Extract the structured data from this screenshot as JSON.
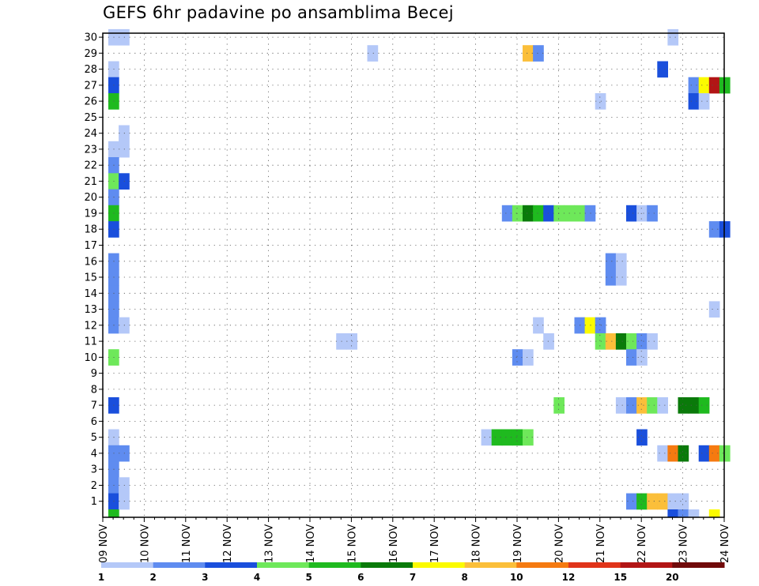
{
  "title": "GEFS 6hr padavine po ansamblima Becej",
  "chart_data": {
    "type": "heatmap",
    "title": "GEFS 6hr padavine po ansamblima Becej",
    "x_start": "2024-11-09",
    "x_tick_labels": [
      "09 NOV",
      "10 NOV",
      "11 NOV",
      "12 NOV",
      "13 NOV",
      "14 NOV",
      "15 NOV",
      "16 NOV",
      "17 NOV",
      "18 NOV",
      "19 NOV",
      "20 NOV",
      "21 NOV",
      "22 NOV",
      "23 NOV",
      "24 NOV"
    ],
    "y_tick_labels": [
      "1",
      "2",
      "3",
      "4",
      "5",
      "6",
      "7",
      "8",
      "9",
      "10",
      "11",
      "12",
      "13",
      "14",
      "15",
      "16",
      "17",
      "18",
      "19",
      "20",
      "21",
      "22",
      "23",
      "24",
      "25",
      "26",
      "27",
      "28",
      "29",
      "30"
    ],
    "y_range": [
      0,
      30
    ],
    "time_step_hours": 6,
    "grid": true,
    "legend_position": "bottom",
    "color_levels": [
      {
        "from": 1,
        "to": 2,
        "color": "#b4c8f8"
      },
      {
        "from": 2,
        "to": 3,
        "color": "#5f8cf0"
      },
      {
        "from": 3,
        "to": 4,
        "color": "#1a4fdc"
      },
      {
        "from": 4,
        "to": 5,
        "color": "#6ee85a"
      },
      {
        "from": 5,
        "to": 6,
        "color": "#1fba1f"
      },
      {
        "from": 6,
        "to": 7,
        "color": "#0a7a0a"
      },
      {
        "from": 7,
        "to": 8,
        "color": "#fbfb00"
      },
      {
        "from": 8,
        "to": 10,
        "color": "#fbbf3a"
      },
      {
        "from": 10,
        "to": 12,
        "color": "#f57a10"
      },
      {
        "from": 12,
        "to": 15,
        "color": "#e0341a"
      },
      {
        "from": 15,
        "to": 20,
        "color": "#b21515"
      },
      {
        "from": 20,
        "to": null,
        "color": "#700a0a"
      }
    ],
    "legend_labels": [
      "1",
      "2",
      "3",
      "4",
      "5",
      "6",
      "7",
      "8",
      "10",
      "12",
      "15",
      "20"
    ],
    "cells": [
      {
        "m": 30,
        "t": 1,
        "v": 1
      },
      {
        "m": 30,
        "t": 2,
        "v": 1
      },
      {
        "m": 30,
        "t": 55,
        "v": 1
      },
      {
        "m": 29,
        "t": 26,
        "v": 1
      },
      {
        "m": 29,
        "t": 41,
        "v": 8
      },
      {
        "m": 29,
        "t": 42,
        "v": 2
      },
      {
        "m": 28,
        "t": 1,
        "v": 1
      },
      {
        "m": 28,
        "t": 54,
        "v": 3
      },
      {
        "m": 27,
        "t": 1,
        "v": 3
      },
      {
        "m": 27,
        "t": 57,
        "v": 2
      },
      {
        "m": 27,
        "t": 58,
        "v": 7
      },
      {
        "m": 27,
        "t": 59,
        "v": 15
      },
      {
        "m": 27,
        "t": 60,
        "v": 5
      },
      {
        "m": 26,
        "t": 1,
        "v": 5
      },
      {
        "m": 26,
        "t": 48,
        "v": 1
      },
      {
        "m": 26,
        "t": 57,
        "v": 3
      },
      {
        "m": 26,
        "t": 58,
        "v": 1
      },
      {
        "m": 24,
        "t": 2,
        "v": 1
      },
      {
        "m": 23,
        "t": 1,
        "v": 1
      },
      {
        "m": 23,
        "t": 2,
        "v": 1
      },
      {
        "m": 22,
        "t": 1,
        "v": 2
      },
      {
        "m": 21,
        "t": 1,
        "v": 4
      },
      {
        "m": 21,
        "t": 2,
        "v": 3
      },
      {
        "m": 20,
        "t": 1,
        "v": 2
      },
      {
        "m": 19,
        "t": 1,
        "v": 5
      },
      {
        "m": 19,
        "t": 39,
        "v": 2
      },
      {
        "m": 19,
        "t": 40,
        "v": 4
      },
      {
        "m": 19,
        "t": 41,
        "v": 6
      },
      {
        "m": 19,
        "t": 42,
        "v": 5
      },
      {
        "m": 19,
        "t": 43,
        "v": 3
      },
      {
        "m": 19,
        "t": 44,
        "v": 4
      },
      {
        "m": 19,
        "t": 45,
        "v": 4
      },
      {
        "m": 19,
        "t": 46,
        "v": 4
      },
      {
        "m": 19,
        "t": 47,
        "v": 2
      },
      {
        "m": 19,
        "t": 51,
        "v": 3
      },
      {
        "m": 19,
        "t": 52,
        "v": 1
      },
      {
        "m": 19,
        "t": 53,
        "v": 2
      },
      {
        "m": 18,
        "t": 1,
        "v": 3
      },
      {
        "m": 18,
        "t": 59,
        "v": 2
      },
      {
        "m": 18,
        "t": 60,
        "v": 3
      },
      {
        "m": 16,
        "t": 1,
        "v": 2
      },
      {
        "m": 16,
        "t": 49,
        "v": 2
      },
      {
        "m": 16,
        "t": 50,
        "v": 1
      },
      {
        "m": 15,
        "t": 1,
        "v": 2
      },
      {
        "m": 15,
        "t": 49,
        "v": 2
      },
      {
        "m": 15,
        "t": 50,
        "v": 1
      },
      {
        "m": 14,
        "t": 1,
        "v": 2
      },
      {
        "m": 13,
        "t": 1,
        "v": 2
      },
      {
        "m": 13,
        "t": 59,
        "v": 1
      },
      {
        "m": 12,
        "t": 1,
        "v": 2
      },
      {
        "m": 12,
        "t": 2,
        "v": 1
      },
      {
        "m": 12,
        "t": 42,
        "v": 1
      },
      {
        "m": 12,
        "t": 46,
        "v": 2
      },
      {
        "m": 12,
        "t": 47,
        "v": 7
      },
      {
        "m": 12,
        "t": 48,
        "v": 2
      },
      {
        "m": 11,
        "t": 23,
        "v": 1
      },
      {
        "m": 11,
        "t": 24,
        "v": 1
      },
      {
        "m": 11,
        "t": 43,
        "v": 1
      },
      {
        "m": 11,
        "t": 48,
        "v": 4
      },
      {
        "m": 11,
        "t": 49,
        "v": 8
      },
      {
        "m": 11,
        "t": 50,
        "v": 6
      },
      {
        "m": 11,
        "t": 51,
        "v": 4
      },
      {
        "m": 11,
        "t": 52,
        "v": 2
      },
      {
        "m": 11,
        "t": 53,
        "v": 1
      },
      {
        "m": 10,
        "t": 1,
        "v": 4
      },
      {
        "m": 10,
        "t": 40,
        "v": 2
      },
      {
        "m": 10,
        "t": 41,
        "v": 1
      },
      {
        "m": 10,
        "t": 51,
        "v": 2
      },
      {
        "m": 10,
        "t": 52,
        "v": 1
      },
      {
        "m": 7,
        "t": 1,
        "v": 3
      },
      {
        "m": 7,
        "t": 44,
        "v": 4
      },
      {
        "m": 7,
        "t": 50,
        "v": 1
      },
      {
        "m": 7,
        "t": 51,
        "v": 2
      },
      {
        "m": 7,
        "t": 52,
        "v": 8
      },
      {
        "m": 7,
        "t": 53,
        "v": 4
      },
      {
        "m": 7,
        "t": 54,
        "v": 1
      },
      {
        "m": 7,
        "t": 56,
        "v": 6
      },
      {
        "m": 7,
        "t": 57,
        "v": 6
      },
      {
        "m": 7,
        "t": 58,
        "v": 5
      },
      {
        "m": 5,
        "t": 1,
        "v": 1
      },
      {
        "m": 5,
        "t": 37,
        "v": 1
      },
      {
        "m": 5,
        "t": 38,
        "v": 5
      },
      {
        "m": 5,
        "t": 39,
        "v": 5
      },
      {
        "m": 5,
        "t": 40,
        "v": 5
      },
      {
        "m": 5,
        "t": 41,
        "v": 4
      },
      {
        "m": 5,
        "t": 52,
        "v": 3
      },
      {
        "m": 4,
        "t": 1,
        "v": 2
      },
      {
        "m": 4,
        "t": 2,
        "v": 2
      },
      {
        "m": 4,
        "t": 54,
        "v": 1
      },
      {
        "m": 4,
        "t": 55,
        "v": 10
      },
      {
        "m": 4,
        "t": 56,
        "v": 6
      },
      {
        "m": 4,
        "t": 58,
        "v": 3
      },
      {
        "m": 4,
        "t": 59,
        "v": 10
      },
      {
        "m": 4,
        "t": 60,
        "v": 4
      },
      {
        "m": 3,
        "t": 1,
        "v": 2
      },
      {
        "m": 2,
        "t": 1,
        "v": 2
      },
      {
        "m": 2,
        "t": 2,
        "v": 1
      },
      {
        "m": 1,
        "t": 1,
        "v": 3
      },
      {
        "m": 1,
        "t": 2,
        "v": 1
      },
      {
        "m": 1,
        "t": 51,
        "v": 2
      },
      {
        "m": 1,
        "t": 52,
        "v": 5
      },
      {
        "m": 1,
        "t": 53,
        "v": 8
      },
      {
        "m": 1,
        "t": 54,
        "v": 8
      },
      {
        "m": 1,
        "t": 55,
        "v": 1
      },
      {
        "m": 1,
        "t": 56,
        "v": 1
      },
      {
        "m": 0,
        "t": 1,
        "v": 5
      },
      {
        "m": 0,
        "t": 55,
        "v": 3
      },
      {
        "m": 0,
        "t": 56,
        "v": 2
      },
      {
        "m": 0,
        "t": 57,
        "v": 1
      },
      {
        "m": 0,
        "t": 59,
        "v": 7
      }
    ]
  }
}
